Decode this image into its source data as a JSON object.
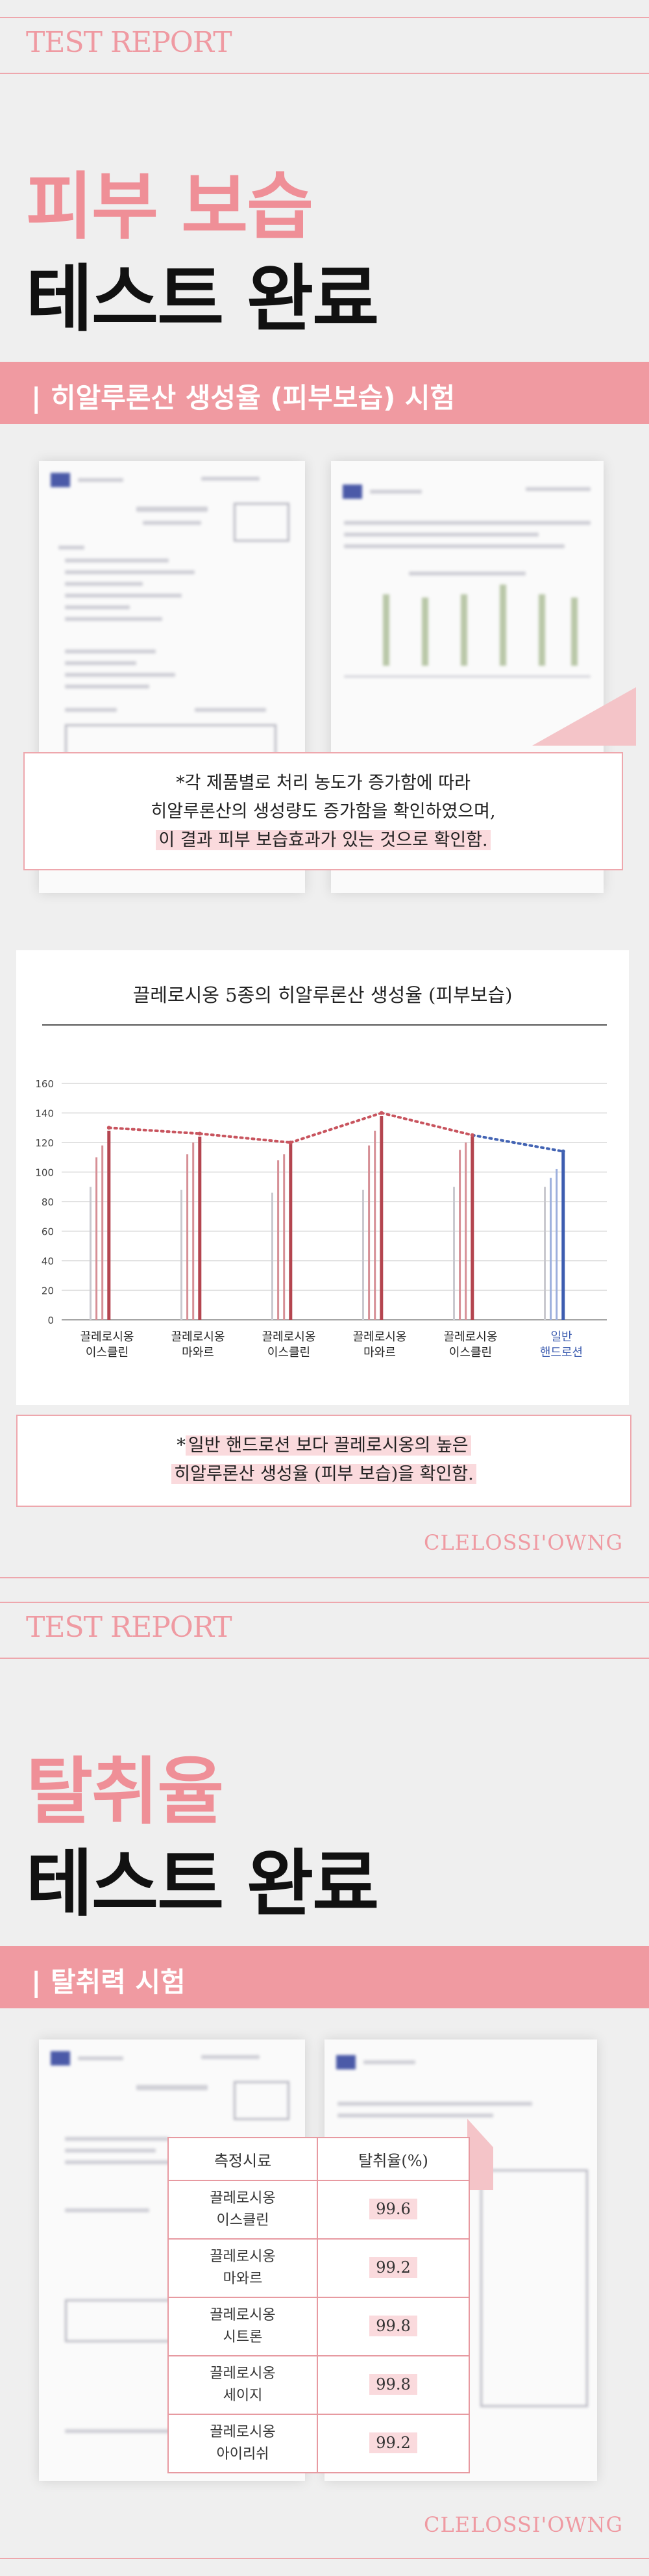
{
  "section1": {
    "tag": "TEST REPORT",
    "title_line1": "피부 보습",
    "title_line2": "테스트 완료",
    "band_label": "| 히알루론산 생성율 (피부보습) 시험",
    "note_line1": "*각 제품별로 처리 농도가 증가함에 따라",
    "note_line2": "히알루론산의 생성량도 증가함을 확인하였으며,",
    "note_line3": "이 결과 피부 보습효과가 있는 것으로 확인함.",
    "chart_note_line1_prefix": "*",
    "chart_note_line1": "일반 핸드로션 보다 끌레로시옹의 높은",
    "chart_note_line2_hl": "히알루론산 생성율 (피부 보습)을 확인함.",
    "brand": "CLELOSSI'OWNG"
  },
  "chart_data": {
    "type": "bar",
    "title": "끌레로시옹 5종의 히알루론산 생성율 (피부보습)",
    "categories": [
      [
        "끌레로시옹",
        "이스클린"
      ],
      [
        "끌레로시옹",
        "마와르"
      ],
      [
        "끌레로시옹",
        "이스클린"
      ],
      [
        "끌레로시옹",
        "마와르"
      ],
      [
        "끌레로시옹",
        "이스클린"
      ],
      [
        "일반",
        "핸드로션"
      ]
    ],
    "bar_values": [
      [
        90,
        110,
        118,
        128
      ],
      [
        88,
        112,
        120,
        124
      ],
      [
        86,
        108,
        112,
        120
      ],
      [
        88,
        118,
        128,
        138
      ],
      [
        90,
        115,
        120,
        124
      ],
      [
        90,
        96,
        102,
        114
      ]
    ],
    "trend_values": [
      130,
      126,
      120,
      140,
      125,
      114
    ],
    "y_ticks": [
      0,
      20,
      40,
      60,
      80,
      100,
      120,
      140,
      160
    ],
    "ylim": [
      0,
      160
    ],
    "colors": {
      "product": "#b4454f",
      "general": "#3d5db0",
      "light": "#c9c9cf",
      "trend_product": "#c8545e",
      "trend_general": "#4263b3"
    },
    "grid": true
  },
  "section2": {
    "tag": "TEST REPORT",
    "title_line1": "탈취율",
    "title_line2": "테스트 완료",
    "band_label": "| 탈취력 시험",
    "table_headers": [
      "측정시료",
      "탈취율(%)"
    ],
    "table_rows": [
      {
        "sample_l1": "끌레로시옹",
        "sample_l2": "이스클린",
        "value": "99.6"
      },
      {
        "sample_l1": "끌레로시옹",
        "sample_l2": "마와르",
        "value": "99.2"
      },
      {
        "sample_l1": "끌레로시옹",
        "sample_l2": "시트론",
        "value": "99.8"
      },
      {
        "sample_l1": "끌레로시옹",
        "sample_l2": "세이지",
        "value": "99.8"
      },
      {
        "sample_l1": "끌레로시옹",
        "sample_l2": "아이리쉬",
        "value": "99.2"
      }
    ],
    "brand": "CLELOSSI'OWNG"
  }
}
